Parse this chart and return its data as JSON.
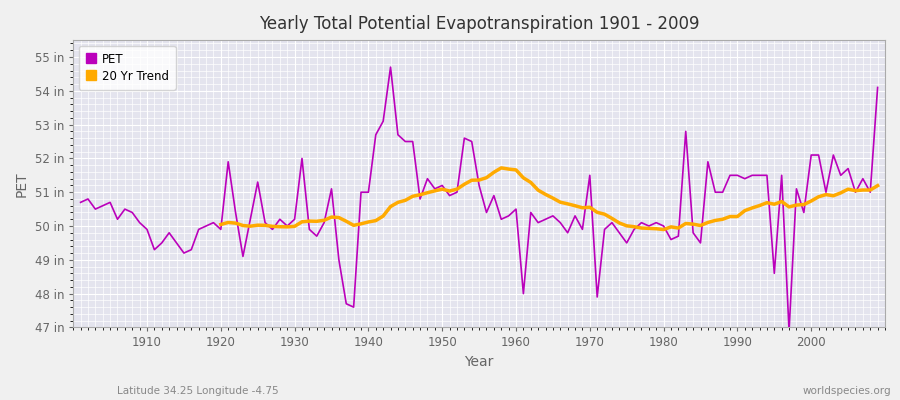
{
  "title": "Yearly Total Potential Evapotranspiration 1901 - 2009",
  "xlabel": "Year",
  "ylabel": "PET",
  "subtitle_left": "Latitude 34.25 Longitude -4.75",
  "subtitle_right": "worldspecies.org",
  "years": [
    1901,
    1902,
    1903,
    1904,
    1905,
    1906,
    1907,
    1908,
    1909,
    1910,
    1911,
    1912,
    1913,
    1914,
    1915,
    1916,
    1917,
    1918,
    1919,
    1920,
    1921,
    1922,
    1923,
    1924,
    1925,
    1926,
    1927,
    1928,
    1929,
    1930,
    1931,
    1932,
    1933,
    1934,
    1935,
    1936,
    1937,
    1938,
    1939,
    1940,
    1941,
    1942,
    1943,
    1944,
    1945,
    1946,
    1947,
    1948,
    1949,
    1950,
    1951,
    1952,
    1953,
    1954,
    1955,
    1956,
    1957,
    1958,
    1959,
    1960,
    1961,
    1962,
    1963,
    1964,
    1965,
    1966,
    1967,
    1968,
    1969,
    1970,
    1971,
    1972,
    1973,
    1974,
    1975,
    1976,
    1977,
    1978,
    1979,
    1980,
    1981,
    1982,
    1983,
    1984,
    1985,
    1986,
    1987,
    1988,
    1989,
    1990,
    1991,
    1992,
    1993,
    1994,
    1995,
    1996,
    1997,
    1998,
    1999,
    2000,
    2001,
    2002,
    2003,
    2004,
    2005,
    2006,
    2007,
    2008,
    2009
  ],
  "pet_values": [
    50.7,
    50.8,
    50.5,
    50.6,
    50.7,
    50.2,
    50.5,
    50.4,
    50.1,
    49.9,
    49.3,
    49.5,
    49.8,
    49.5,
    49.2,
    49.3,
    49.9,
    50.0,
    50.1,
    49.9,
    51.9,
    50.4,
    49.1,
    50.2,
    51.3,
    50.1,
    49.9,
    50.2,
    50.0,
    50.2,
    52.0,
    49.9,
    49.7,
    50.1,
    51.1,
    49.0,
    47.7,
    47.6,
    51.0,
    51.0,
    52.7,
    53.1,
    54.7,
    52.7,
    52.5,
    52.5,
    50.8,
    51.4,
    51.1,
    51.2,
    50.9,
    51.0,
    52.6,
    52.5,
    51.2,
    50.4,
    50.9,
    50.2,
    50.3,
    50.5,
    48.0,
    50.4,
    50.1,
    50.2,
    50.3,
    50.1,
    49.8,
    50.3,
    49.9,
    51.5,
    47.9,
    49.9,
    50.1,
    49.8,
    49.5,
    49.9,
    50.1,
    50.0,
    50.1,
    50.0,
    49.6,
    49.7,
    52.8,
    49.8,
    49.5,
    51.9,
    51.0,
    51.0,
    51.5,
    51.5,
    51.4,
    51.5,
    51.5,
    51.5,
    48.6,
    51.5,
    46.9,
    51.1,
    50.4,
    52.1,
    52.1,
    51.0,
    52.1,
    51.5,
    51.7,
    51.0,
    51.4,
    51.0,
    54.1
  ],
  "pet_color": "#bb00bb",
  "trend_color": "#ffaa00",
  "bg_color": "#f0f0f0",
  "plot_bg_color": "#e4e4ee",
  "grid_color": "#ffffff",
  "ylim": [
    47.0,
    55.5
  ],
  "yticks": [
    47,
    48,
    49,
    50,
    51,
    52,
    53,
    54,
    55
  ],
  "xlim": [
    1900,
    2010
  ],
  "xticks": [
    1910,
    1920,
    1930,
    1940,
    1950,
    1960,
    1970,
    1980,
    1990,
    2000
  ],
  "legend_labels": [
    "PET",
    "20 Yr Trend"
  ],
  "trend_window": 20
}
